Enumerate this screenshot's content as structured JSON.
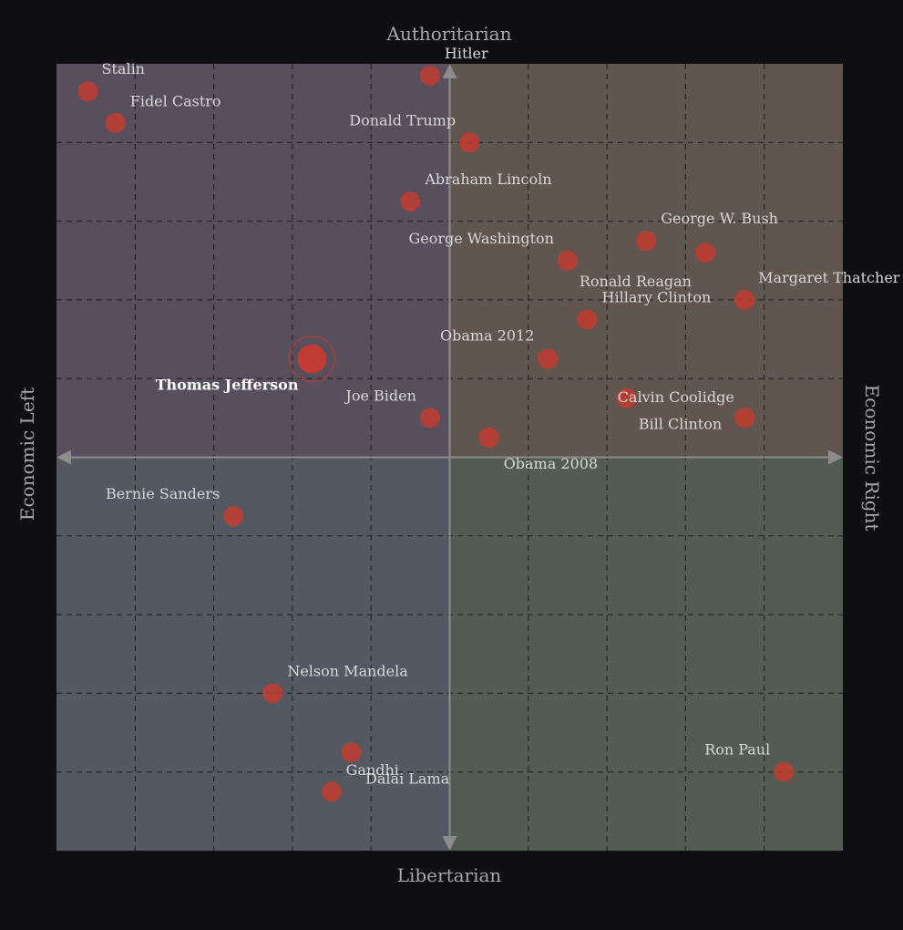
{
  "chart_data": {
    "type": "scatter",
    "axis_titles": {
      "top": "Authoritarian",
      "bottom": "Libertarian",
      "left": "Economic Left",
      "right": "Economic Right"
    },
    "xlim": [
      -10,
      10
    ],
    "ylim": [
      -10,
      10
    ],
    "grid": true,
    "quadrant_colors": {
      "top_left": "#574e5e",
      "top_right": "#61564f",
      "bottom_left": "#535862",
      "bottom_right": "#535c54"
    },
    "marker_color": "#c63a2e",
    "points": [
      {
        "name": "Stalin",
        "x": -9.2,
        "y": 9.3
      },
      {
        "name": "Fidel Castro",
        "x": -8.5,
        "y": 8.5
      },
      {
        "name": "Hitler",
        "x": -0.5,
        "y": 9.7
      },
      {
        "name": "Donald Trump",
        "x": 0.5,
        "y": 8.0
      },
      {
        "name": "Abraham Lincoln",
        "x": -1.0,
        "y": 6.5
      },
      {
        "name": "George W. Bush",
        "x": 5.0,
        "y": 5.5
      },
      {
        "name": "George Washington",
        "x": 3.0,
        "y": 5.0
      },
      {
        "name": "Ronald Reagan",
        "x": 6.5,
        "y": 5.2
      },
      {
        "name": "Margaret Thatcher",
        "x": 7.5,
        "y": 4.0
      },
      {
        "name": "Hillary Clinton",
        "x": 3.5,
        "y": 3.5
      },
      {
        "name": "Obama 2012",
        "x": 2.5,
        "y": 2.5
      },
      {
        "name": "Thomas Jefferson",
        "x": -3.5,
        "y": 2.5,
        "highlight": true
      },
      {
        "name": "Joe Biden",
        "x": -0.5,
        "y": 1.0
      },
      {
        "name": "Calvin Coolidge",
        "x": 4.5,
        "y": 1.5
      },
      {
        "name": "Bill Clinton",
        "x": 7.5,
        "y": 1.0
      },
      {
        "name": "Obama 2008",
        "x": 1.0,
        "y": 0.5
      },
      {
        "name": "Bernie Sanders",
        "x": -5.5,
        "y": -1.5
      },
      {
        "name": "Nelson Mandela",
        "x": -4.5,
        "y": -6.0
      },
      {
        "name": "Gandhi",
        "x": -2.5,
        "y": -7.5
      },
      {
        "name": "Dalai Lama",
        "x": -3.0,
        "y": -8.5
      },
      {
        "name": "Ron Paul",
        "x": 8.5,
        "y": -8.0
      }
    ]
  }
}
